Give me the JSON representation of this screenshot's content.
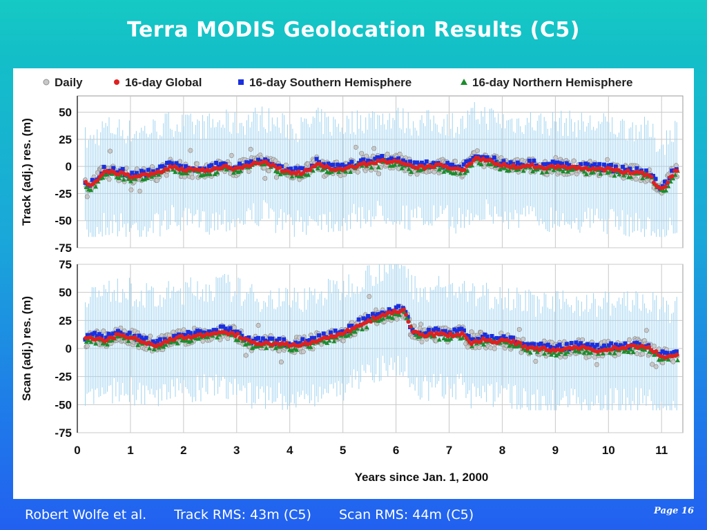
{
  "header": {
    "title": "Terra MODIS Geolocation Results (C5)"
  },
  "footer": {
    "author": "Robert Wolfe et al.",
    "track_rms": "Track RMS: 43m (C5)",
    "scan_rms": "Scan RMS: 44m (C5)",
    "page": "Page 16"
  },
  "chart_data": [
    {
      "type": "scatter",
      "panel": "top",
      "ylabel": "Track (adj.) res. (m)",
      "xlabel": "",
      "xlim": [
        0,
        11.4
      ],
      "ylim": [
        -75,
        65
      ],
      "yticks": [
        50,
        25,
        0,
        -25,
        -50,
        -75
      ],
      "xticks": [
        0,
        1,
        2,
        3,
        4,
        5,
        6,
        7,
        8,
        9,
        10,
        11
      ],
      "grid": true,
      "legend": {
        "placement": "top",
        "entries": [
          "Daily",
          "16-day Global",
          "16-day Southern Hemisphere",
          "16-day Northern Hemisphere"
        ]
      },
      "series": [
        {
          "name": "16-day Global",
          "color": "#e02020",
          "x": [
            0.15,
            0.25,
            0.5,
            0.75,
            1.0,
            1.25,
            1.5,
            1.75,
            2.0,
            2.25,
            2.5,
            2.75,
            3.0,
            3.25,
            3.5,
            3.75,
            4.0,
            4.25,
            4.5,
            4.75,
            5.0,
            5.25,
            5.5,
            5.75,
            6.0,
            6.25,
            6.5,
            6.75,
            7.0,
            7.25,
            7.5,
            7.75,
            8.0,
            8.25,
            8.5,
            8.75,
            9.0,
            9.25,
            9.5,
            9.75,
            10.0,
            10.25,
            10.5,
            10.75,
            10.9,
            11.0,
            11.25
          ],
          "y": [
            -15,
            -18,
            -5,
            -6,
            -9,
            -8,
            -6,
            0,
            -3,
            -4,
            -3,
            0,
            -2,
            2,
            5,
            -2,
            -5,
            -6,
            2,
            -2,
            -3,
            1,
            3,
            5,
            4,
            0,
            -1,
            1,
            -1,
            -3,
            8,
            5,
            1,
            0,
            1,
            -1,
            0,
            -1,
            -2,
            -2,
            -3,
            -5,
            -5,
            -8,
            -17,
            -22,
            -4
          ]
        }
      ],
      "annotations": {
        "daily_range": [
          -25,
          25
        ],
        "error_bar_range": [
          -65,
          60
        ]
      }
    },
    {
      "type": "scatter",
      "panel": "bottom",
      "ylabel": "Scan (adj.) res. (m)",
      "xlabel": "Years since Jan. 1, 2000",
      "xlim": [
        0,
        11.4
      ],
      "ylim": [
        -75,
        75
      ],
      "yticks": [
        75,
        50,
        25,
        0,
        -25,
        -50,
        -75
      ],
      "xticks": [
        0,
        1,
        2,
        3,
        4,
        5,
        6,
        7,
        8,
        9,
        10,
        11
      ],
      "grid": true,
      "series": [
        {
          "name": "16-day Global",
          "color": "#e02020",
          "x": [
            0.15,
            0.25,
            0.5,
            0.75,
            1.0,
            1.25,
            1.5,
            1.75,
            2.0,
            2.25,
            2.5,
            2.75,
            3.0,
            3.25,
            3.5,
            3.75,
            4.0,
            4.25,
            4.5,
            4.75,
            5.0,
            5.25,
            5.5,
            5.75,
            6.0,
            6.15,
            6.3,
            6.5,
            6.75,
            7.0,
            7.25,
            7.4,
            7.6,
            7.85,
            8.0,
            8.25,
            8.5,
            8.75,
            9.0,
            9.25,
            9.5,
            9.75,
            10.0,
            10.25,
            10.5,
            10.75,
            11.0,
            11.25
          ],
          "y": [
            8,
            10,
            7,
            12,
            10,
            6,
            3,
            8,
            10,
            12,
            13,
            15,
            12,
            5,
            4,
            5,
            3,
            4,
            7,
            10,
            13,
            20,
            25,
            30,
            33,
            34,
            15,
            12,
            13,
            12,
            13,
            5,
            8,
            6,
            7,
            5,
            0,
            0,
            -2,
            0,
            1,
            -2,
            0,
            0,
            2,
            0,
            -7,
            -6
          ]
        }
      ],
      "annotations": {
        "daily_range": [
          -15,
          45
        ],
        "error_bar_range": [
          -55,
          75
        ]
      }
    }
  ]
}
